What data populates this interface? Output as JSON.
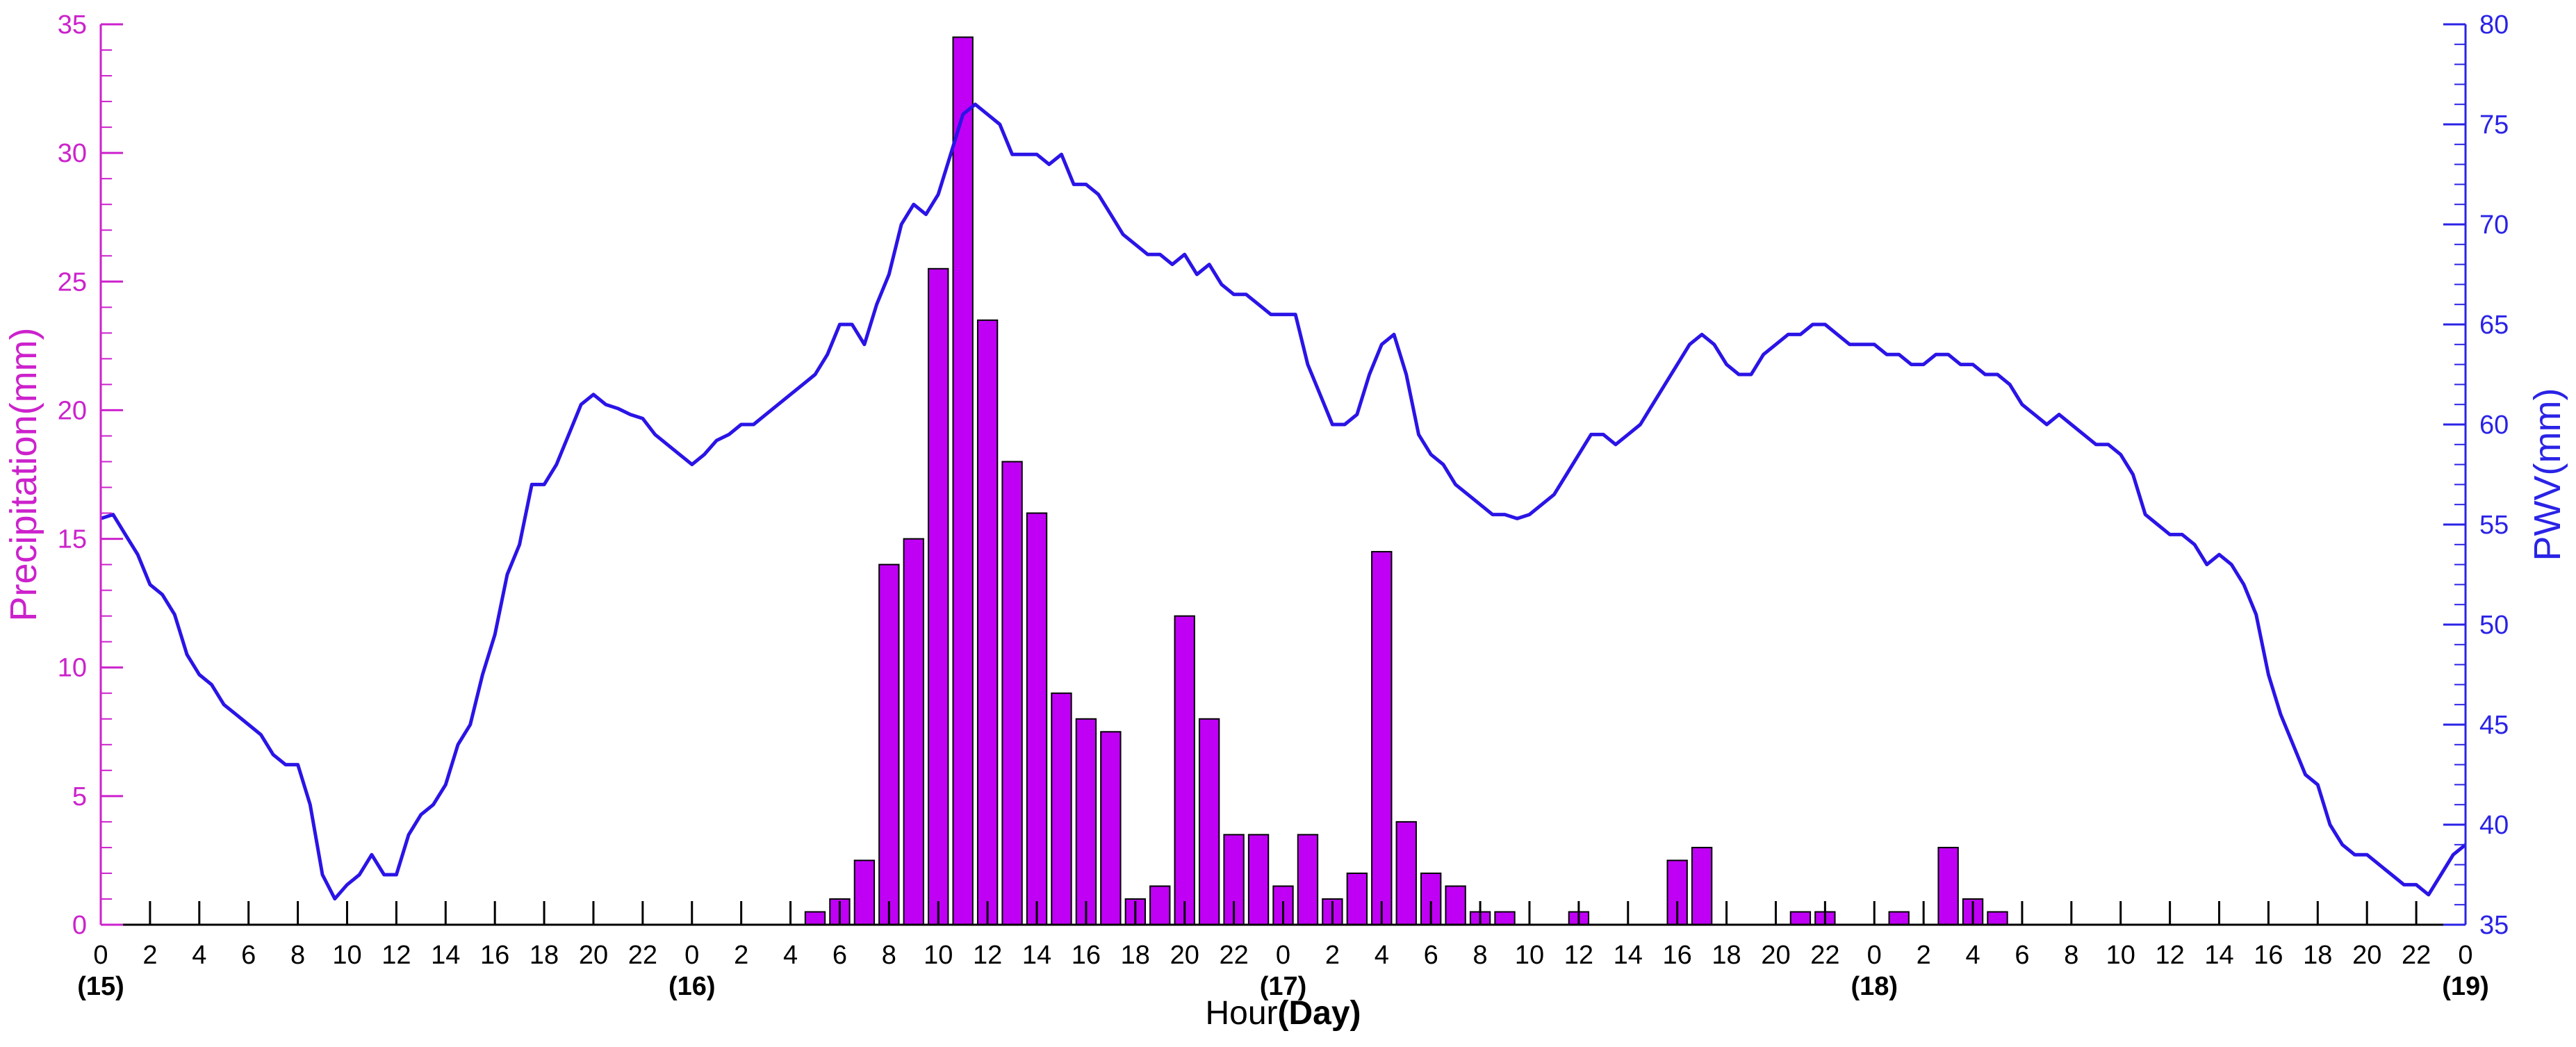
{
  "colors": {
    "precip_axis": "#cc22cc",
    "pwv_axis": "#2a23e6",
    "bar_fill": "#bf00f5",
    "bar_stroke": "#000000",
    "line": "#2a14e6",
    "black": "#000000"
  },
  "chart_data": {
    "type": "bar+line",
    "title": "",
    "xlabel": "Hour",
    "xlabel_suffix": "(Day)",
    "ylabel_left": "Precipitation(mm)",
    "ylabel_right": "PWV(mm)",
    "x_unit": "hours since 0h of day 15",
    "xlim": [
      0,
      96
    ],
    "ylim_left": [
      0,
      35
    ],
    "ylim_right": [
      35,
      80
    ],
    "yticks_left": [
      "0",
      "5",
      "10",
      "15",
      "20",
      "25",
      "30",
      "35"
    ],
    "yticks_right": [
      "35",
      "40",
      "45",
      "50",
      "55",
      "60",
      "65",
      "70",
      "75",
      "80"
    ],
    "xtick_labels": [
      "0",
      "2",
      "4",
      "6",
      "8",
      "10",
      "12",
      "14",
      "16",
      "18",
      "20",
      "22",
      "0",
      "2",
      "4",
      "6",
      "8",
      "10",
      "12",
      "14",
      "16",
      "18",
      "20",
      "22",
      "0",
      "2",
      "4",
      "6",
      "8",
      "10",
      "12",
      "14",
      "16",
      "18",
      "20",
      "22",
      "0",
      "2",
      "4",
      "6",
      "8",
      "10",
      "12",
      "14",
      "16",
      "18",
      "20",
      "22",
      "0"
    ],
    "day_labels": [
      {
        "hour": 0,
        "label": "(15)"
      },
      {
        "hour": 24,
        "label": "(16)"
      },
      {
        "hour": 48,
        "label": "(17)"
      },
      {
        "hour": 72,
        "label": "(18)"
      },
      {
        "hour": 96,
        "label": "(19)"
      }
    ],
    "grid": false,
    "series": [
      {
        "name": "Precipitation",
        "type": "bar",
        "axis": "left",
        "points": [
          [
            29,
            0.5
          ],
          [
            30,
            1.0
          ],
          [
            31,
            2.5
          ],
          [
            32,
            14.0
          ],
          [
            33,
            15.0
          ],
          [
            34,
            25.5
          ],
          [
            35,
            34.5
          ],
          [
            36,
            23.5
          ],
          [
            37,
            18.0
          ],
          [
            38,
            16.0
          ],
          [
            39,
            9.0
          ],
          [
            40,
            8.0
          ],
          [
            41,
            7.5
          ],
          [
            42,
            1.0
          ],
          [
            43,
            1.5
          ],
          [
            44,
            12.0
          ],
          [
            45,
            8.0
          ],
          [
            46,
            3.5
          ],
          [
            47,
            3.5
          ],
          [
            48,
            1.5
          ],
          [
            49,
            3.5
          ],
          [
            50,
            1.0
          ],
          [
            51,
            2.0
          ],
          [
            52,
            14.5
          ],
          [
            53,
            4.0
          ],
          [
            54,
            2.0
          ],
          [
            55,
            1.5
          ],
          [
            56,
            0.5
          ],
          [
            57,
            0.5
          ],
          [
            60,
            0.5
          ],
          [
            64,
            2.5
          ],
          [
            65,
            3.0
          ],
          [
            69,
            0.5
          ],
          [
            70,
            0.5
          ],
          [
            73,
            0.5
          ],
          [
            75,
            3.0
          ],
          [
            76,
            1.0
          ],
          [
            77,
            0.5
          ]
        ]
      },
      {
        "name": "PWV",
        "type": "line",
        "axis": "right",
        "points": [
          [
            0,
            55.3
          ],
          [
            0.5,
            55.5
          ],
          [
            1,
            54.5
          ],
          [
            1.5,
            53.5
          ],
          [
            2,
            52.0
          ],
          [
            2.5,
            51.5
          ],
          [
            3,
            50.5
          ],
          [
            3.5,
            48.5
          ],
          [
            4,
            47.5
          ],
          [
            4.5,
            47.0
          ],
          [
            5,
            46.0
          ],
          [
            5.5,
            45.5
          ],
          [
            6,
            45.0
          ],
          [
            6.5,
            44.5
          ],
          [
            7,
            43.5
          ],
          [
            7.5,
            43.0
          ],
          [
            8,
            43.0
          ],
          [
            8.5,
            41.0
          ],
          [
            9,
            37.5
          ],
          [
            9.5,
            36.3
          ],
          [
            10,
            37.0
          ],
          [
            10.5,
            37.5
          ],
          [
            11,
            38.5
          ],
          [
            11.5,
            37.5
          ],
          [
            12,
            37.5
          ],
          [
            12.5,
            39.5
          ],
          [
            13,
            40.5
          ],
          [
            13.5,
            41.0
          ],
          [
            14,
            42.0
          ],
          [
            14.5,
            44.0
          ],
          [
            15,
            45.0
          ],
          [
            15.5,
            47.5
          ],
          [
            16,
            49.5
          ],
          [
            16.5,
            52.5
          ],
          [
            17,
            54.0
          ],
          [
            17.5,
            57.0
          ],
          [
            18,
            57.0
          ],
          [
            18.5,
            58.0
          ],
          [
            19,
            59.5
          ],
          [
            19.5,
            61.0
          ],
          [
            20,
            61.5
          ],
          [
            20.5,
            61.0
          ],
          [
            21,
            60.8
          ],
          [
            21.5,
            60.5
          ],
          [
            22,
            60.3
          ],
          [
            22.5,
            59.5
          ],
          [
            23,
            59.0
          ],
          [
            23.5,
            58.5
          ],
          [
            24,
            58.0
          ],
          [
            24.5,
            58.5
          ],
          [
            25,
            59.2
          ],
          [
            25.5,
            59.5
          ],
          [
            26,
            60.0
          ],
          [
            26.5,
            60.0
          ],
          [
            27,
            60.5
          ],
          [
            27.5,
            61.0
          ],
          [
            28,
            61.5
          ],
          [
            28.5,
            62.0
          ],
          [
            29,
            62.5
          ],
          [
            29.5,
            63.5
          ],
          [
            30,
            65.0
          ],
          [
            30.5,
            65.0
          ],
          [
            31,
            64.0
          ],
          [
            31.5,
            66.0
          ],
          [
            32,
            67.5
          ],
          [
            32.5,
            70.0
          ],
          [
            33,
            71.0
          ],
          [
            33.5,
            70.5
          ],
          [
            34,
            71.5
          ],
          [
            34.5,
            73.5
          ],
          [
            35,
            75.5
          ],
          [
            35.5,
            76.0
          ],
          [
            36,
            75.5
          ],
          [
            36.5,
            75.0
          ],
          [
            37,
            73.5
          ],
          [
            37.5,
            73.5
          ],
          [
            38,
            73.5
          ],
          [
            38.5,
            73.0
          ],
          [
            39,
            73.5
          ],
          [
            39.5,
            72.0
          ],
          [
            40,
            72.0
          ],
          [
            40.5,
            71.5
          ],
          [
            41,
            70.5
          ],
          [
            41.5,
            69.5
          ],
          [
            42,
            69.0
          ],
          [
            42.5,
            68.5
          ],
          [
            43,
            68.5
          ],
          [
            43.5,
            68.0
          ],
          [
            44,
            68.5
          ],
          [
            44.5,
            67.5
          ],
          [
            45,
            68.0
          ],
          [
            45.5,
            67.0
          ],
          [
            46,
            66.5
          ],
          [
            46.5,
            66.5
          ],
          [
            47,
            66.0
          ],
          [
            47.5,
            65.5
          ],
          [
            48,
            65.5
          ],
          [
            48.5,
            65.5
          ],
          [
            49,
            63.0
          ],
          [
            49.5,
            61.5
          ],
          [
            50,
            60.0
          ],
          [
            50.5,
            60.0
          ],
          [
            51,
            60.5
          ],
          [
            51.5,
            62.5
          ],
          [
            52,
            64.0
          ],
          [
            52.5,
            64.5
          ],
          [
            53,
            62.5
          ],
          [
            53.5,
            59.5
          ],
          [
            54,
            58.5
          ],
          [
            54.5,
            58.0
          ],
          [
            55,
            57.0
          ],
          [
            55.5,
            56.5
          ],
          [
            56,
            56.0
          ],
          [
            56.5,
            55.5
          ],
          [
            57,
            55.5
          ],
          [
            57.5,
            55.3
          ],
          [
            58,
            55.5
          ],
          [
            58.5,
            56.0
          ],
          [
            59,
            56.5
          ],
          [
            59.5,
            57.5
          ],
          [
            60,
            58.5
          ],
          [
            60.5,
            59.5
          ],
          [
            61,
            59.5
          ],
          [
            61.5,
            59.0
          ],
          [
            62,
            59.5
          ],
          [
            62.5,
            60.0
          ],
          [
            63,
            61.0
          ],
          [
            63.5,
            62.0
          ],
          [
            64,
            63.0
          ],
          [
            64.5,
            64.0
          ],
          [
            65,
            64.5
          ],
          [
            65.5,
            64.0
          ],
          [
            66,
            63.0
          ],
          [
            66.5,
            62.5
          ],
          [
            67,
            62.5
          ],
          [
            67.5,
            63.5
          ],
          [
            68,
            64.0
          ],
          [
            68.5,
            64.5
          ],
          [
            69,
            64.5
          ],
          [
            69.5,
            65.0
          ],
          [
            70,
            65.0
          ],
          [
            70.5,
            64.5
          ],
          [
            71,
            64.0
          ],
          [
            71.5,
            64.0
          ],
          [
            72,
            64.0
          ],
          [
            72.5,
            63.5
          ],
          [
            73,
            63.5
          ],
          [
            73.5,
            63.0
          ],
          [
            74,
            63.0
          ],
          [
            74.5,
            63.5
          ],
          [
            75,
            63.5
          ],
          [
            75.5,
            63.0
          ],
          [
            76,
            63.0
          ],
          [
            76.5,
            62.5
          ],
          [
            77,
            62.5
          ],
          [
            77.5,
            62.0
          ],
          [
            78,
            61.0
          ],
          [
            78.5,
            60.5
          ],
          [
            79,
            60.0
          ],
          [
            79.5,
            60.5
          ],
          [
            80,
            60.0
          ],
          [
            80.5,
            59.5
          ],
          [
            81,
            59.0
          ],
          [
            81.5,
            59.0
          ],
          [
            82,
            58.5
          ],
          [
            82.5,
            57.5
          ],
          [
            83,
            55.5
          ],
          [
            83.5,
            55.0
          ],
          [
            84,
            54.5
          ],
          [
            84.5,
            54.5
          ],
          [
            85,
            54.0
          ],
          [
            85.5,
            53.0
          ],
          [
            86,
            53.5
          ],
          [
            86.5,
            53.0
          ],
          [
            87,
            52.0
          ],
          [
            87.5,
            50.5
          ],
          [
            88,
            47.5
          ],
          [
            88.5,
            45.5
          ],
          [
            89,
            44.0
          ],
          [
            89.5,
            42.5
          ],
          [
            90,
            42.0
          ],
          [
            90.5,
            40.0
          ],
          [
            91,
            39.0
          ],
          [
            91.5,
            38.5
          ],
          [
            92,
            38.5
          ],
          [
            92.5,
            38.0
          ],
          [
            93,
            37.5
          ],
          [
            93.5,
            37.0
          ],
          [
            94,
            37.0
          ],
          [
            94.5,
            36.5
          ],
          [
            95,
            37.5
          ],
          [
            95.5,
            38.5
          ],
          [
            96,
            39.0
          ]
        ]
      }
    ]
  }
}
